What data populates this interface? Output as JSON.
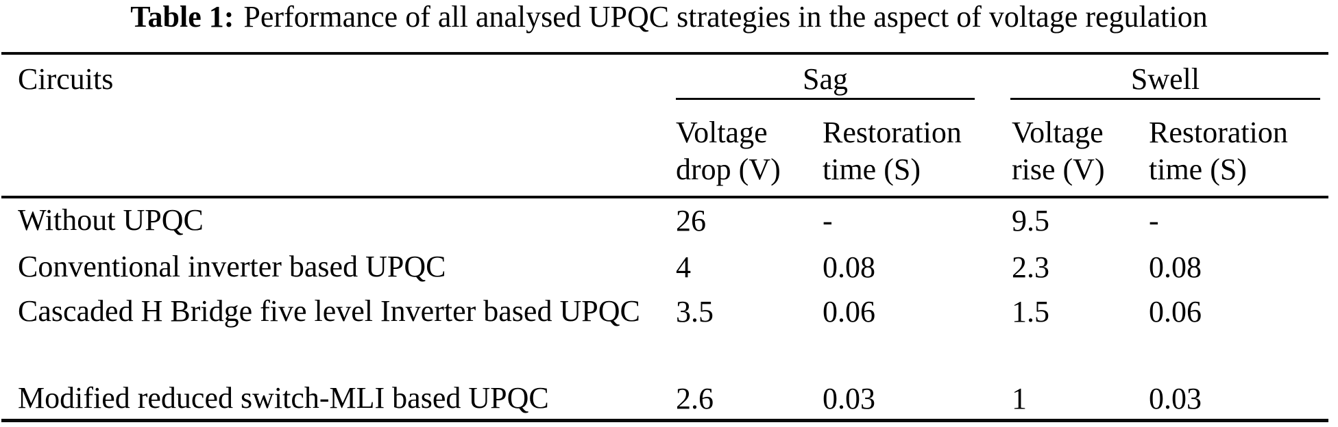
{
  "caption": {
    "label": "Table 1:",
    "text": "Performance of all analysed UPQC strategies in the aspect of voltage regulation"
  },
  "table": {
    "circuits_header": "Circuits",
    "groups": [
      {
        "label": "Sag"
      },
      {
        "label": "Swell"
      }
    ],
    "subheaders": [
      "Voltage drop (V)",
      "Restoration time (S)",
      "Voltage rise (V)",
      "Restoration time (S)"
    ],
    "rows": [
      {
        "circuit": "Without UPQC",
        "values": [
          "26",
          "-",
          "9.5",
          "-"
        ]
      },
      {
        "circuit": "Conventional inverter based UPQC",
        "values": [
          "4",
          "0.08",
          "2.3",
          "0.08"
        ]
      },
      {
        "circuit": "Cascaded H Bridge five level Inverter based UPQC",
        "values": [
          "3.5",
          "0.06",
          "1.5",
          "0.06"
        ]
      },
      {
        "circuit": "Modified reduced switch-MLI based UPQC",
        "values": [
          "2.6",
          "0.03",
          "1",
          "0.03"
        ]
      }
    ]
  },
  "colors": {
    "background": "#ffffff",
    "text": "#000000",
    "rule": "#0a0a0a"
  }
}
